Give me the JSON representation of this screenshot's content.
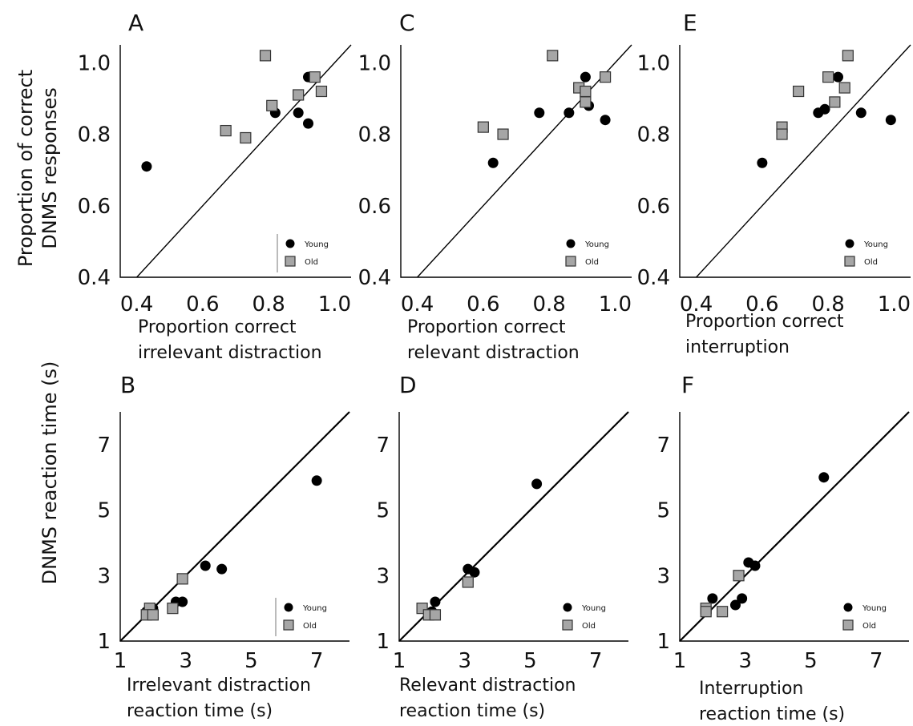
{
  "ylabels": {
    "top_line1": "Proportion of correct",
    "top_line2": "DNMS responses",
    "bottom": "DNMS reaction time (s)"
  },
  "legend": {
    "young": "Young",
    "old": "Old"
  },
  "colors": {
    "young": "#000000",
    "old": "#a6a6a6"
  },
  "chart_data": [
    {
      "panel": "A",
      "type": "scatter",
      "xlabel_line1": "Proportion correct",
      "xlabel_line2": "irrelevant distraction",
      "xlim": [
        0.35,
        1.05
      ],
      "ylim": [
        0.4,
        1.05
      ],
      "xticks": [
        "0.4",
        "0.6",
        "0.8",
        "1.0"
      ],
      "xtick_values": [
        0.4,
        0.6,
        0.8,
        1.0
      ],
      "yticks": [
        "0.4",
        "0.6",
        "0.8",
        "1.0"
      ],
      "ytick_values": [
        0.4,
        0.6,
        0.8,
        1.0
      ],
      "legend_position": "bottom-right",
      "legend_divider": true,
      "identity_line": true,
      "series": [
        {
          "name": "Young",
          "marker": "circle",
          "points": [
            [
              0.43,
              0.71
            ],
            [
              0.82,
              0.86
            ],
            [
              0.89,
              0.86
            ],
            [
              0.92,
              0.83
            ],
            [
              0.92,
              0.96
            ]
          ]
        },
        {
          "name": "Old",
          "marker": "square",
          "points": [
            [
              0.79,
              1.02
            ],
            [
              0.81,
              0.88
            ],
            [
              0.67,
              0.81
            ],
            [
              0.73,
              0.79
            ],
            [
              0.89,
              0.91
            ],
            [
              0.94,
              0.96
            ],
            [
              0.96,
              0.92
            ]
          ]
        }
      ]
    },
    {
      "panel": "C",
      "type": "scatter",
      "xlabel_line1": "Proportion correct",
      "xlabel_line2": "relevant distraction",
      "xlim": [
        0.35,
        1.05
      ],
      "ylim": [
        0.4,
        1.05
      ],
      "xticks": [
        "0.4",
        "0.6",
        "0.8",
        "1.0"
      ],
      "xtick_values": [
        0.4,
        0.6,
        0.8,
        1.0
      ],
      "yticks": [
        "0.4",
        "0.6",
        "0.8",
        "1.0"
      ],
      "ytick_values": [
        0.4,
        0.6,
        0.8,
        1.0
      ],
      "legend_position": "bottom-right",
      "legend_divider": false,
      "identity_line": true,
      "series": [
        {
          "name": "Young",
          "marker": "circle",
          "points": [
            [
              0.63,
              0.72
            ],
            [
              0.77,
              0.86
            ],
            [
              0.86,
              0.86
            ],
            [
              0.91,
              0.96
            ],
            [
              0.92,
              0.88
            ],
            [
              0.97,
              0.84
            ]
          ]
        },
        {
          "name": "Old",
          "marker": "square",
          "points": [
            [
              0.81,
              1.02
            ],
            [
              0.6,
              0.82
            ],
            [
              0.66,
              0.8
            ],
            [
              0.89,
              0.93
            ],
            [
              0.91,
              0.92
            ],
            [
              0.91,
              0.89
            ],
            [
              0.97,
              0.96
            ]
          ]
        }
      ]
    },
    {
      "panel": "E",
      "type": "scatter",
      "xlabel_line1": "Proportion correct",
      "xlabel_line2": "interruption",
      "xlim": [
        0.35,
        1.05
      ],
      "ylim": [
        0.4,
        1.05
      ],
      "xticks": [
        "0.4",
        "0.6",
        "0.8",
        "1.0"
      ],
      "xtick_values": [
        0.4,
        0.6,
        0.8,
        1.0
      ],
      "yticks": [
        "0.4",
        "0.6",
        "0.8",
        "1.0"
      ],
      "ytick_values": [
        0.4,
        0.6,
        0.8,
        1.0
      ],
      "legend_position": "bottom-right",
      "legend_divider": false,
      "identity_line": true,
      "series": [
        {
          "name": "Young",
          "marker": "circle",
          "points": [
            [
              0.6,
              0.72
            ],
            [
              0.77,
              0.86
            ],
            [
              0.79,
              0.87
            ],
            [
              0.83,
              0.96
            ],
            [
              0.9,
              0.86
            ],
            [
              0.99,
              0.84
            ]
          ]
        },
        {
          "name": "Old",
          "marker": "square",
          "points": [
            [
              0.86,
              1.02
            ],
            [
              0.8,
              0.96
            ],
            [
              0.71,
              0.92
            ],
            [
              0.66,
              0.82
            ],
            [
              0.66,
              0.8
            ],
            [
              0.82,
              0.89
            ],
            [
              0.85,
              0.93
            ]
          ]
        }
      ]
    },
    {
      "panel": "B",
      "type": "scatter",
      "xlabel_line1": "Irrelevant distraction",
      "xlabel_line2": "reaction time (s)",
      "xlim": [
        1,
        8
      ],
      "ylim": [
        1,
        8
      ],
      "xticks": [
        "1",
        "3",
        "5",
        "7"
      ],
      "xtick_values": [
        1,
        3,
        5,
        7
      ],
      "yticks": [
        "1",
        "3",
        "5",
        "7"
      ],
      "ytick_values": [
        1,
        3,
        5,
        7
      ],
      "legend_position": "bottom-right",
      "legend_divider": true,
      "identity_line": true,
      "series": [
        {
          "name": "Young",
          "marker": "circle",
          "points": [
            [
              7.0,
              5.9
            ],
            [
              3.6,
              3.3
            ],
            [
              4.1,
              3.2
            ],
            [
              2.7,
              2.2
            ],
            [
              2.9,
              2.2
            ],
            [
              2.0,
              2.0
            ],
            [
              1.8,
              1.9
            ]
          ]
        },
        {
          "name": "Old",
          "marker": "square",
          "points": [
            [
              2.9,
              2.9
            ],
            [
              2.6,
              2.0
            ],
            [
              1.9,
              2.0
            ],
            [
              1.8,
              1.8
            ],
            [
              2.0,
              1.8
            ]
          ]
        }
      ]
    },
    {
      "panel": "D",
      "type": "scatter",
      "xlabel_line1": "Relevant distraction",
      "xlabel_line2": "reaction time (s)",
      "xlim": [
        1,
        8
      ],
      "ylim": [
        1,
        8
      ],
      "xticks": [
        "1",
        "3",
        "5",
        "7"
      ],
      "xtick_values": [
        1,
        3,
        5,
        7
      ],
      "yticks": [
        "1",
        "3",
        "5",
        "7"
      ],
      "ytick_values": [
        1,
        3,
        5,
        7
      ],
      "legend_position": "bottom-right",
      "legend_divider": false,
      "identity_line": true,
      "series": [
        {
          "name": "Young",
          "marker": "circle",
          "points": [
            [
              5.2,
              5.8
            ],
            [
              3.1,
              3.2
            ],
            [
              3.3,
              3.1
            ],
            [
              2.1,
              2.2
            ],
            [
              2.0,
              1.9
            ]
          ]
        },
        {
          "name": "Old",
          "marker": "square",
          "points": [
            [
              3.1,
              2.8
            ],
            [
              1.7,
              2.0
            ],
            [
              1.9,
              1.8
            ],
            [
              2.1,
              1.8
            ]
          ]
        }
      ]
    },
    {
      "panel": "F",
      "type": "scatter",
      "xlabel_line1": "Interruption",
      "xlabel_line2": "reaction time (s)",
      "xlim": [
        1,
        8
      ],
      "ylim": [
        1,
        8
      ],
      "xticks": [
        "1",
        "3",
        "5",
        "7"
      ],
      "xtick_values": [
        1,
        3,
        5,
        7
      ],
      "yticks": [
        "1",
        "3",
        "5",
        "7"
      ],
      "ytick_values": [
        1,
        3,
        5,
        7
      ],
      "legend_position": "bottom-right",
      "legend_divider": false,
      "identity_line": true,
      "series": [
        {
          "name": "Young",
          "marker": "circle",
          "points": [
            [
              5.4,
              6.0
            ],
            [
              3.1,
              3.4
            ],
            [
              3.3,
              3.3
            ],
            [
              2.9,
              2.3
            ],
            [
              2.7,
              2.1
            ],
            [
              2.0,
              2.3
            ],
            [
              1.8,
              1.9
            ]
          ]
        },
        {
          "name": "Old",
          "marker": "square",
          "points": [
            [
              2.8,
              3.0
            ],
            [
              2.3,
              1.9
            ],
            [
              1.8,
              2.0
            ],
            [
              1.8,
              1.9
            ]
          ]
        }
      ]
    }
  ]
}
